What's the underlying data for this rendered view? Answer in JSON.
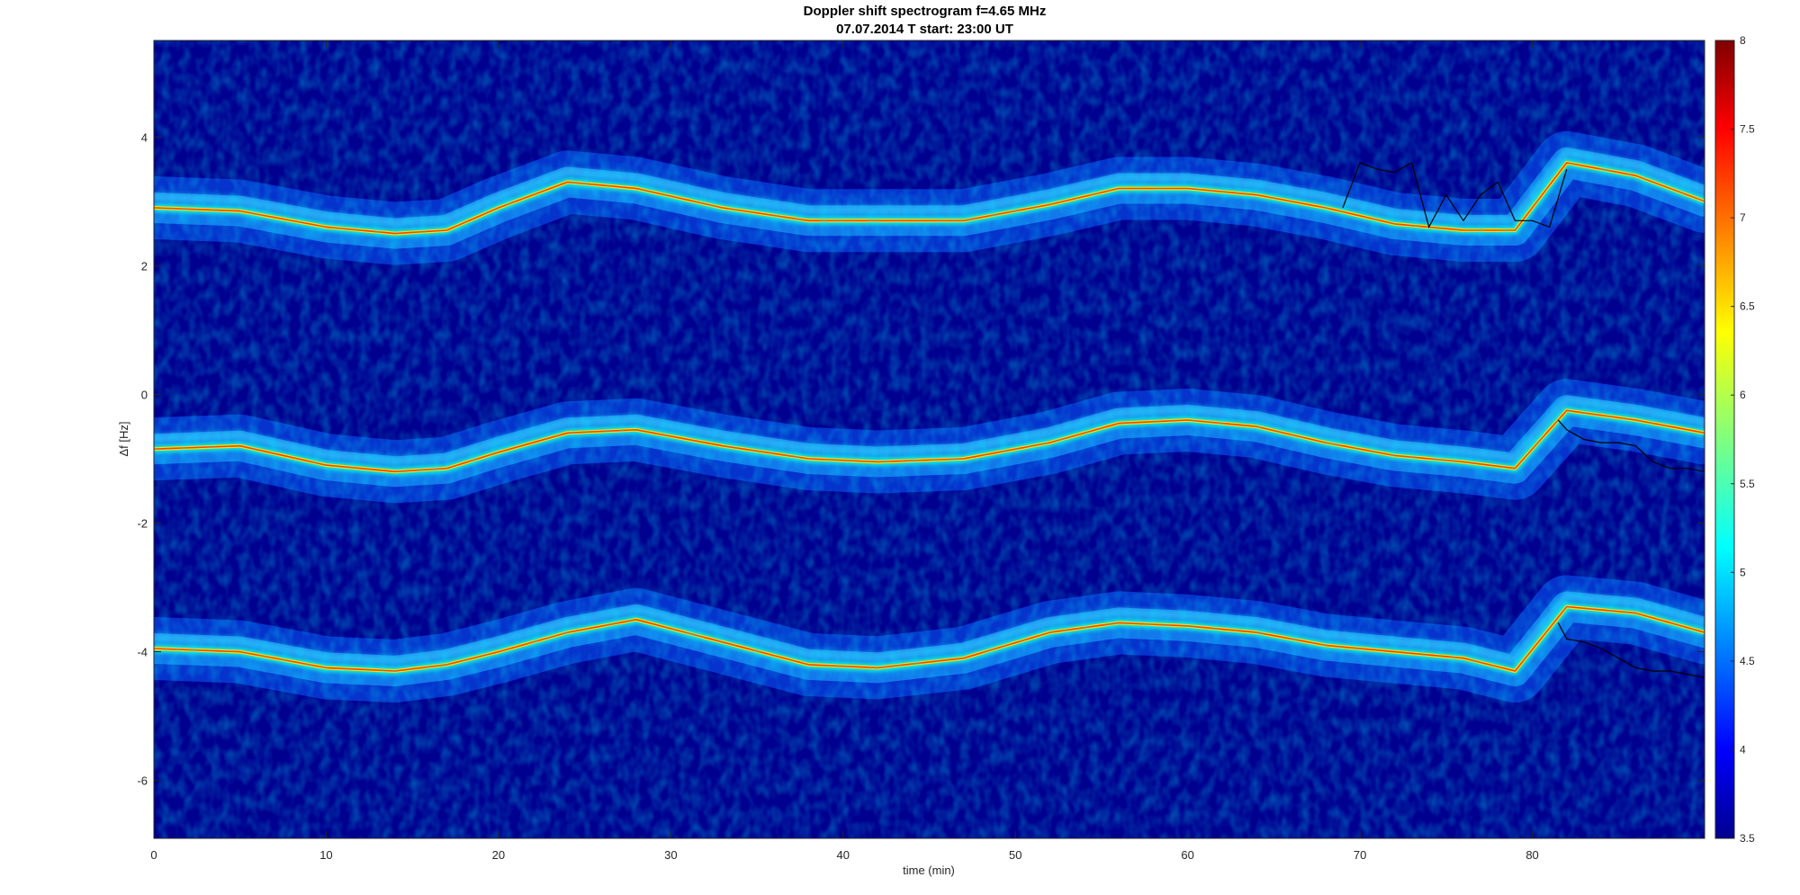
{
  "chart_data": {
    "type": "heatmap",
    "title": "Doppler shift spectrogram f=4.65 MHz",
    "subtitle": "07.07.2014   T start: 23:00 UT",
    "xlabel": "time (min)",
    "ylabel": "Δf [Hz]",
    "xlim": [
      0,
      90
    ],
    "ylim": [
      -6.9,
      5.5
    ],
    "xticks": [
      "0",
      "10",
      "20",
      "30",
      "40",
      "50",
      "60",
      "70",
      "80"
    ],
    "xtick_values": [
      0,
      10,
      20,
      30,
      40,
      50,
      60,
      70,
      80
    ],
    "yticks": [
      "4",
      "2",
      "0",
      "-2",
      "-4",
      "-6"
    ],
    "ytick_values": [
      4,
      2,
      0,
      -2,
      -4,
      -6
    ],
    "colorbar": {
      "min": 3.5,
      "max": 8,
      "colormap": "jet",
      "ticks": [
        "8",
        "7.5",
        "7",
        "6.5",
        "6",
        "5.5",
        "5",
        "4.5",
        "4",
        "3.5"
      ],
      "tick_values": [
        8,
        7.5,
        7,
        6.5,
        6,
        5.5,
        5,
        4.5,
        4,
        3.5
      ]
    },
    "background_value": 3.6,
    "series": [
      {
        "x": [
          0,
          5,
          10,
          14,
          17,
          20,
          24,
          28,
          33,
          38,
          42,
          47,
          52,
          56,
          60,
          64,
          68,
          72,
          76,
          79,
          82,
          86,
          90
        ],
        "y": [
          2.9,
          2.85,
          2.6,
          2.5,
          2.55,
          2.9,
          3.3,
          3.2,
          2.9,
          2.7,
          2.7,
          2.7,
          2.95,
          3.2,
          3.2,
          3.1,
          2.9,
          2.65,
          2.55,
          2.55,
          3.6,
          3.4,
          3.0
        ]
      },
      {
        "x": [
          0,
          5,
          10,
          14,
          17,
          20,
          24,
          28,
          33,
          38,
          42,
          47,
          52,
          56,
          60,
          64,
          68,
          72,
          76,
          79,
          82,
          86,
          90
        ],
        "y": [
          -0.85,
          -0.8,
          -1.1,
          -1.2,
          -1.15,
          -0.9,
          -0.6,
          -0.55,
          -0.8,
          -1.0,
          -1.05,
          -1.0,
          -0.75,
          -0.45,
          -0.4,
          -0.5,
          -0.75,
          -0.95,
          -1.05,
          -1.15,
          -0.25,
          -0.4,
          -0.6
        ]
      },
      {
        "x": [
          0,
          5,
          10,
          14,
          17,
          20,
          24,
          28,
          33,
          38,
          42,
          47,
          52,
          56,
          60,
          64,
          68,
          72,
          76,
          79,
          82,
          86,
          90
        ],
        "y": [
          -3.95,
          -4.0,
          -4.25,
          -4.3,
          -4.2,
          -4.0,
          -3.7,
          -3.5,
          -3.85,
          -4.2,
          -4.25,
          -4.1,
          -3.7,
          -3.55,
          -3.6,
          -3.7,
          -3.9,
          -4.0,
          -4.1,
          -4.3,
          -3.3,
          -3.4,
          -3.7
        ]
      }
    ],
    "tracks": [
      {
        "x": [
          69,
          70,
          71,
          72,
          73,
          74,
          75,
          76,
          77,
          78,
          79,
          80,
          81,
          82
        ],
        "y": [
          2.9,
          3.6,
          3.5,
          3.45,
          3.6,
          2.6,
          3.1,
          2.7,
          3.1,
          3.3,
          2.7,
          2.7,
          2.6,
          3.5
        ]
      },
      {
        "x": [
          81.5,
          82,
          83,
          84,
          85,
          86,
          87,
          88,
          89,
          90
        ],
        "y": [
          -0.4,
          -0.55,
          -0.7,
          -0.75,
          -0.75,
          -0.8,
          -1.05,
          -1.15,
          -1.15,
          -1.2
        ]
      },
      {
        "x": [
          81.5,
          82,
          83,
          84,
          85,
          86,
          87,
          88,
          89,
          90
        ],
        "y": [
          -3.55,
          -3.8,
          -3.85,
          -3.95,
          -4.1,
          -4.25,
          -4.3,
          -4.3,
          -4.35,
          -4.4
        ]
      }
    ]
  }
}
